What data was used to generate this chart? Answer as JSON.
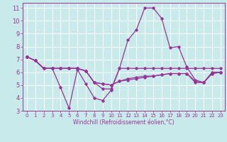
{
  "xlabel": "Windchill (Refroidissement éolien,°C)",
  "background_color": "#c8eaea",
  "grid_color": "#ffffff",
  "line_color": "#993399",
  "xlim": [
    -0.5,
    23.5
  ],
  "ylim": [
    3,
    11.4
  ],
  "xticks": [
    0,
    1,
    2,
    3,
    4,
    5,
    6,
    7,
    8,
    9,
    10,
    11,
    12,
    13,
    14,
    15,
    16,
    17,
    18,
    19,
    20,
    21,
    22,
    23
  ],
  "yticks": [
    3,
    4,
    5,
    6,
    7,
    8,
    9,
    10,
    11
  ],
  "series": [
    [
      7.2,
      6.9,
      6.3,
      6.3,
      4.8,
      3.2,
      6.2,
      5.1,
      4.0,
      3.8,
      4.6,
      6.3,
      6.3,
      6.3,
      6.3,
      6.3,
      6.3,
      6.3,
      6.3,
      6.3,
      6.3,
      6.3,
      6.3,
      6.3
    ],
    [
      7.2,
      6.9,
      6.3,
      6.3,
      6.3,
      6.3,
      6.3,
      6.1,
      5.2,
      4.7,
      4.7,
      6.3,
      8.5,
      9.3,
      11.0,
      11.0,
      10.2,
      7.9,
      8.0,
      6.4,
      5.4,
      5.2,
      6.0,
      6.0
    ],
    [
      7.2,
      6.9,
      6.3,
      6.3,
      6.3,
      6.3,
      6.3,
      6.1,
      5.2,
      5.1,
      5.0,
      5.3,
      5.5,
      5.6,
      5.7,
      5.7,
      5.8,
      5.9,
      5.9,
      5.9,
      5.3,
      5.2,
      5.9,
      6.0
    ],
    [
      7.2,
      6.9,
      6.3,
      6.3,
      6.3,
      6.3,
      6.3,
      6.1,
      5.2,
      5.1,
      5.0,
      5.3,
      5.4,
      5.5,
      5.6,
      5.7,
      5.8,
      5.9,
      5.9,
      5.9,
      5.2,
      5.2,
      5.9,
      6.0
    ]
  ],
  "tick_fontsize_x": 5,
  "tick_fontsize_y": 6,
  "xlabel_fontsize": 5.5
}
